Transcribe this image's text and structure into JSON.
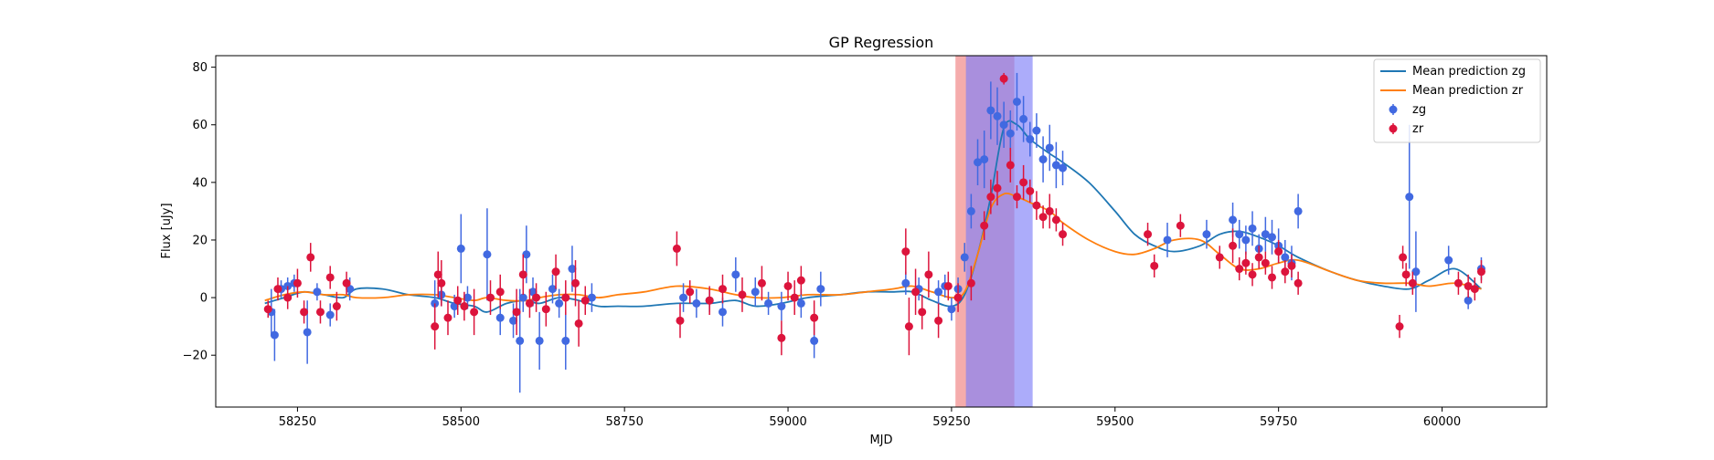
{
  "chart_data": {
    "type": "scatter",
    "title": "GP Regression",
    "xlabel": "MJD",
    "ylabel": "Flux [uJy]",
    "xlim": [
      58125,
      60160
    ],
    "ylim": [
      -38,
      84
    ],
    "x_ticks": [
      58250,
      58500,
      58750,
      59000,
      59250,
      59500,
      59750,
      60000
    ],
    "y_ticks": [
      -20,
      0,
      20,
      40,
      60,
      80
    ],
    "grid": false,
    "legend_position": "top-right",
    "shaded_regions": [
      {
        "x0": 59256,
        "x1": 59346,
        "color": "#f08080"
      },
      {
        "x0": 59272,
        "x1": 59374,
        "color": "#8080f8"
      }
    ],
    "lines": [
      {
        "name": "Mean prediction zg",
        "color": "#1f77b4",
        "x": [
          58200,
          58230,
          58260,
          58290,
          58320,
          58340,
          58380,
          58420,
          58460,
          58490,
          58520,
          58540,
          58570,
          58600,
          58620,
          58650,
          58680,
          58710,
          58740,
          58780,
          58830,
          58880,
          58920,
          58950,
          58990,
          59030,
          59080,
          59120,
          59160,
          59190,
          59220,
          59250,
          59270,
          59290,
          59310,
          59330,
          59350,
          59370,
          59400,
          59420,
          59460,
          59500,
          59530,
          59560,
          59590,
          59630,
          59660,
          59690,
          59720,
          59750,
          59780,
          59830,
          59870,
          59910,
          59950,
          59980,
          60020,
          60060
        ],
        "y": [
          -2,
          0,
          2,
          1,
          0,
          3,
          3,
          1,
          0,
          -2,
          -3,
          -5,
          -2,
          -1,
          -2,
          0,
          -1,
          -3,
          -3,
          -3,
          -2,
          -2,
          -1,
          -3,
          -2,
          0,
          1,
          2,
          2,
          2,
          -1,
          -3,
          1,
          15,
          35,
          59,
          60,
          55,
          50,
          47,
          40,
          30,
          22,
          18,
          16,
          18,
          22,
          23,
          21,
          18,
          14,
          9,
          6,
          4,
          3,
          6,
          10,
          3
        ]
      },
      {
        "name": "Mean prediction zr",
        "color": "#ff7f0e",
        "x": [
          58200,
          58230,
          58260,
          58290,
          58320,
          58340,
          58380,
          58420,
          58460,
          58490,
          58520,
          58540,
          58570,
          58600,
          58620,
          58650,
          58680,
          58710,
          58740,
          58780,
          58830,
          58880,
          58920,
          58950,
          58990,
          59030,
          59080,
          59120,
          59160,
          59190,
          59220,
          59250,
          59270,
          59290,
          59310,
          59330,
          59350,
          59370,
          59400,
          59420,
          59460,
          59500,
          59530,
          59560,
          59590,
          59630,
          59660,
          59690,
          59720,
          59750,
          59780,
          59830,
          59870,
          59910,
          59950,
          59980,
          60020,
          60060
        ],
        "y": [
          -1,
          1,
          2,
          1,
          1,
          0,
          0,
          1,
          1,
          0,
          -1,
          0,
          -1,
          -1,
          0,
          1,
          1,
          0,
          1,
          2,
          4,
          3,
          1,
          0,
          0,
          1,
          1,
          2,
          3,
          4,
          2,
          0,
          2,
          15,
          31,
          36,
          35,
          33,
          30,
          26,
          20,
          16,
          15,
          17,
          20,
          20,
          15,
          10,
          10,
          12,
          13,
          9,
          6,
          5,
          5,
          4,
          5,
          3
        ]
      }
    ],
    "series": [
      {
        "name": "zg",
        "color": "#4169e1",
        "x": [
          58210,
          58215,
          58225,
          58235,
          58245,
          58265,
          58280,
          58300,
          58330,
          58460,
          58470,
          58490,
          58500,
          58510,
          58540,
          58560,
          58580,
          58590,
          58595,
          58600,
          58610,
          58620,
          58640,
          58650,
          58660,
          58670,
          58700,
          58840,
          58860,
          58880,
          58900,
          58920,
          58950,
          58970,
          58990,
          59020,
          59040,
          59050,
          59180,
          59200,
          59230,
          59240,
          59250,
          59260,
          59270,
          59280,
          59290,
          59300,
          59310,
          59320,
          59330,
          59340,
          59350,
          59360,
          59370,
          59380,
          59390,
          59400,
          59410,
          59420,
          59580,
          59640,
          59680,
          59690,
          59700,
          59710,
          59720,
          59730,
          59740,
          59750,
          59760,
          59770,
          59780,
          59950,
          59960,
          60010,
          60040,
          60060
        ],
        "y": [
          -5,
          -13,
          3,
          4,
          5,
          -12,
          2,
          -6,
          3,
          -2,
          1,
          -3,
          17,
          0,
          15,
          -7,
          -8,
          -15,
          0,
          15,
          2,
          -15,
          3,
          -2,
          -15,
          10,
          0,
          0,
          -2,
          -1,
          -5,
          8,
          2,
          -2,
          -3,
          -2,
          -15,
          3,
          5,
          3,
          2,
          4,
          -4,
          3,
          14,
          30,
          47,
          48,
          65,
          63,
          60,
          57,
          68,
          62,
          55,
          58,
          48,
          52,
          46,
          45,
          20,
          22,
          27,
          22,
          20,
          24,
          17,
          22,
          21,
          18,
          14,
          12,
          30,
          35,
          9,
          13,
          -1,
          10
        ],
        "err": [
          8,
          9,
          3,
          3,
          3,
          11,
          3,
          4,
          4,
          8,
          4,
          4,
          12,
          4,
          16,
          6,
          6,
          18,
          5,
          10,
          5,
          10,
          5,
          5,
          10,
          8,
          5,
          5,
          5,
          4,
          5,
          6,
          5,
          4,
          5,
          5,
          6,
          6,
          4,
          4,
          4,
          4,
          4,
          4,
          5,
          6,
          8,
          10,
          10,
          10,
          8,
          8,
          10,
          8,
          6,
          6,
          8,
          8,
          8,
          6,
          6,
          5,
          6,
          5,
          5,
          6,
          5,
          6,
          6,
          6,
          6,
          6,
          6,
          25,
          14,
          5,
          3,
          4
        ]
      },
      {
        "name": "zr",
        "color": "#dc143c",
        "x": [
          58205,
          58220,
          58235,
          58250,
          58260,
          58270,
          58285,
          58300,
          58310,
          58325,
          58460,
          58465,
          58470,
          58480,
          58495,
          58505,
          58520,
          58545,
          58560,
          58585,
          58595,
          58605,
          58615,
          58630,
          58645,
          58660,
          58675,
          58680,
          58690,
          58830,
          58835,
          58850,
          58880,
          58900,
          58930,
          58960,
          58990,
          59000,
          59010,
          59020,
          59040,
          59180,
          59185,
          59195,
          59205,
          59215,
          59230,
          59245,
          59260,
          59280,
          59300,
          59310,
          59320,
          59330,
          59340,
          59350,
          59360,
          59370,
          59380,
          59390,
          59400,
          59410,
          59420,
          59550,
          59560,
          59600,
          59660,
          59680,
          59690,
          59700,
          59710,
          59720,
          59730,
          59740,
          59750,
          59760,
          59770,
          59780,
          59935,
          59940,
          59945,
          59955,
          60025,
          60040,
          60050,
          60060
        ],
        "y": [
          -4,
          3,
          0,
          5,
          -5,
          14,
          -5,
          7,
          -3,
          5,
          -10,
          8,
          5,
          -7,
          -1,
          -3,
          -5,
          0,
          2,
          -5,
          8,
          -2,
          0,
          -4,
          9,
          0,
          5,
          -9,
          -1,
          17,
          -8,
          2,
          -1,
          3,
          1,
          5,
          -14,
          4,
          0,
          6,
          -7,
          16,
          -10,
          2,
          -5,
          8,
          -8,
          4,
          0,
          5,
          25,
          35,
          38,
          76,
          46,
          35,
          40,
          37,
          32,
          28,
          30,
          27,
          22,
          22,
          11,
          25,
          14,
          18,
          10,
          12,
          8,
          14,
          12,
          7,
          16,
          9,
          11,
          5,
          -10,
          14,
          8,
          5,
          5,
          4,
          3,
          9
        ],
        "err": [
          3,
          4,
          4,
          5,
          4,
          5,
          4,
          4,
          5,
          4,
          8,
          8,
          8,
          6,
          5,
          5,
          8,
          6,
          6,
          8,
          7,
          5,
          5,
          6,
          6,
          6,
          8,
          8,
          5,
          6,
          6,
          4,
          5,
          5,
          6,
          6,
          6,
          5,
          6,
          5,
          6,
          8,
          10,
          8,
          6,
          8,
          6,
          5,
          5,
          6,
          5,
          6,
          6,
          2,
          6,
          4,
          6,
          4,
          5,
          4,
          6,
          4,
          4,
          4,
          4,
          4,
          4,
          6,
          4,
          4,
          4,
          4,
          4,
          4,
          4,
          4,
          4,
          4,
          4,
          4,
          4,
          4,
          4,
          4,
          4,
          4
        ]
      }
    ]
  }
}
